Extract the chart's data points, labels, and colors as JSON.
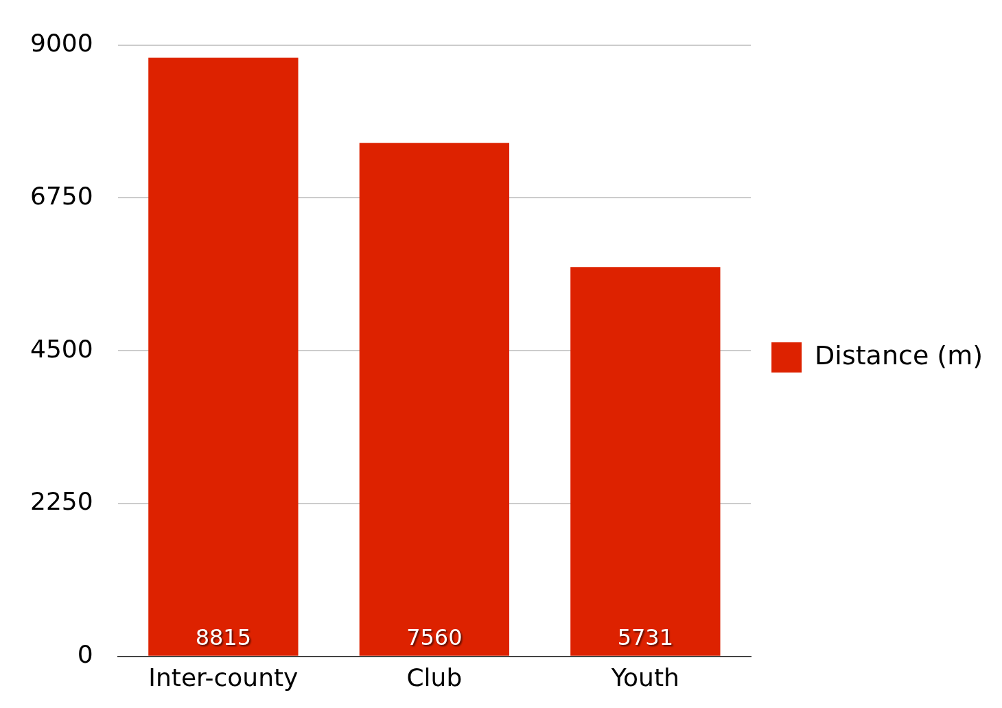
{
  "chart_data": {
    "type": "bar",
    "categories": [
      "Inter-county",
      "Club",
      "Youth"
    ],
    "series": [
      {
        "name": "Distance (m)",
        "color": "#dd2200",
        "values": [
          8815,
          7560,
          5731
        ]
      }
    ],
    "ylim": [
      0,
      9000
    ],
    "yticks": [
      0,
      2250,
      4500,
      6750,
      9000
    ],
    "grid": "y",
    "legend": "right",
    "data_labels": true
  }
}
